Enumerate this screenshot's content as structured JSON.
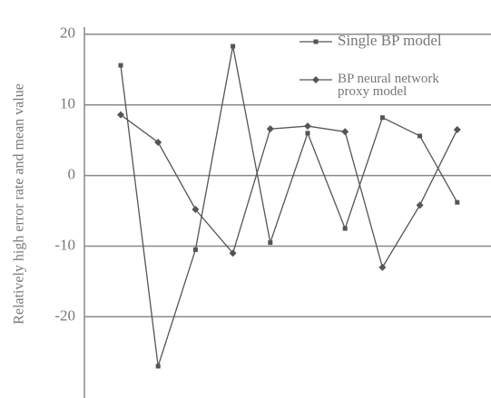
{
  "chart_data": {
    "type": "line",
    "y_label": "Relatively high error rate and mean value",
    "categories": [
      null,
      null,
      null,
      null,
      null,
      null,
      null,
      null,
      null,
      null
    ],
    "series": [
      {
        "name": "Single BP model",
        "color": "#555555",
        "marker": "square",
        "values": [
          15.6,
          -27,
          -10.5,
          18.3,
          -9.5,
          6.0,
          -7.5,
          8.2,
          5.6,
          -3.8
        ]
      },
      {
        "name": "BP neural network proxy model",
        "color": "#555555",
        "marker": "diamond",
        "values": [
          8.6,
          4.7,
          -4.8,
          -11,
          6.6,
          7.0,
          6.2,
          -13,
          -4.2,
          6.5
        ]
      }
    ],
    "ylim": [
      -31.5,
      21
    ],
    "yticks": [
      -20,
      -10,
      0,
      10,
      20
    ],
    "grid": true
  }
}
